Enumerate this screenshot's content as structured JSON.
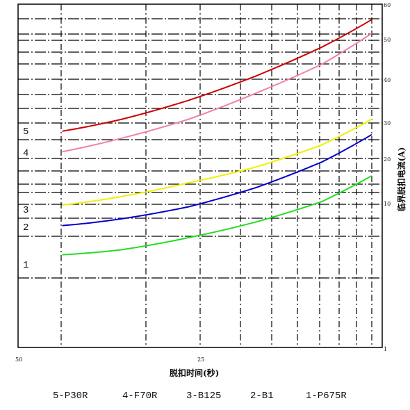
{
  "chart_data": {
    "type": "line",
    "xlabel": "脱扣时间(秒)",
    "ylabel": "临界脱扣电流(A)",
    "x_ticks": [
      "50",
      "25"
    ],
    "y_ticks": [
      "60",
      "50",
      "40",
      "30",
      "20",
      "10",
      "1"
    ],
    "grid": true,
    "curve_labels": [
      "5",
      "4",
      "3",
      "2",
      "1"
    ],
    "legend": [
      "5-P30R",
      "4-F70R",
      "3-B125",
      "2-B1",
      "1-P675R"
    ],
    "series": [
      {
        "label": "5",
        "color": "#cc0000",
        "points": [
          [
            0.07,
            0.63
          ],
          [
            0.25,
            0.665
          ],
          [
            0.45,
            0.72
          ],
          [
            0.65,
            0.79
          ],
          [
            0.85,
            0.875
          ],
          [
            1.0,
            0.955
          ]
        ]
      },
      {
        "label": "4",
        "color": "#f080b0",
        "points": [
          [
            0.07,
            0.57
          ],
          [
            0.25,
            0.61
          ],
          [
            0.45,
            0.665
          ],
          [
            0.65,
            0.74
          ],
          [
            0.85,
            0.825
          ],
          [
            1.0,
            0.915
          ]
        ]
      },
      {
        "label": "3",
        "color": "#f0f000",
        "points": [
          [
            0.07,
            0.415
          ],
          [
            0.25,
            0.44
          ],
          [
            0.45,
            0.48
          ],
          [
            0.65,
            0.525
          ],
          [
            0.85,
            0.59
          ],
          [
            1.0,
            0.665
          ]
        ]
      },
      {
        "label": "2",
        "color": "#0000cc",
        "points": [
          [
            0.07,
            0.355
          ],
          [
            0.25,
            0.375
          ],
          [
            0.45,
            0.41
          ],
          [
            0.65,
            0.465
          ],
          [
            0.85,
            0.54
          ],
          [
            1.0,
            0.62
          ]
        ]
      },
      {
        "label": "1",
        "color": "#22dd22",
        "points": [
          [
            0.07,
            0.27
          ],
          [
            0.25,
            0.285
          ],
          [
            0.45,
            0.32
          ],
          [
            0.65,
            0.365
          ],
          [
            0.85,
            0.425
          ],
          [
            1.0,
            0.5
          ]
        ]
      }
    ]
  }
}
